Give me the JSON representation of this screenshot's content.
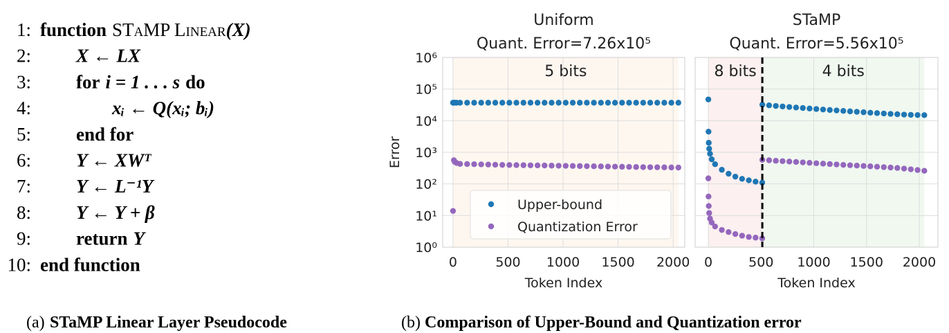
{
  "algorithm": {
    "lines": [
      {
        "number": "1:",
        "keyword": "function",
        "name": "STaMP Linear",
        "code": "(X)"
      },
      {
        "number": "2:",
        "code": "X ← LX"
      },
      {
        "number": "3:",
        "keyword": "for",
        "code": "i = 1 . . . s",
        "end": "do"
      },
      {
        "number": "4:",
        "code": "xᵢ ← Q(xᵢ; bᵢ)"
      },
      {
        "number": "5:",
        "keyword": "end for"
      },
      {
        "number": "6:",
        "code": "Y ← XWᵀ"
      },
      {
        "number": "7:",
        "code": "Y ← L⁻¹Y"
      },
      {
        "number": "8:",
        "code": "Y ← Y + β"
      },
      {
        "number": "9:",
        "keyword": "return",
        "code": "Y"
      },
      {
        "number": "10:",
        "keyword": "end function"
      }
    ]
  },
  "captions": [
    {
      "label": "(a)",
      "text": "STaMP Linear Layer Pseudocode"
    },
    {
      "label": "(b)",
      "text": "Comparison of Upper-Bound and Quantization error"
    }
  ],
  "chart_data": [
    {
      "type": "scatter",
      "title": "Uniform",
      "subtitle": "Quant. Error=7.26x10⁵",
      "xlabel": "Token Index",
      "ylabel": "Error",
      "ylog": true,
      "grid": true,
      "legend": "lower center",
      "xlim": [
        -94,
        2106
      ],
      "xticks": [
        0,
        500,
        1000,
        1500,
        2000
      ],
      "ylim": [
        1,
        1000000
      ],
      "yticks": [
        {
          "value": 1,
          "label": "10⁰"
        },
        {
          "value": 10,
          "label": "10¹"
        },
        {
          "value": 100,
          "label": "10²"
        },
        {
          "value": 1000,
          "label": "10³"
        },
        {
          "value": 10000,
          "label": "10⁴"
        },
        {
          "value": 100000,
          "label": "10⁵"
        },
        {
          "value": 1000000,
          "label": "10⁶"
        }
      ],
      "regions": [
        {
          "from": 0,
          "to": 2048,
          "label": "5 bits",
          "color": "#f28e2b"
        }
      ],
      "x": [
        0,
        8,
        16,
        32,
        64,
        128,
        192,
        256,
        320,
        384,
        448,
        512,
        576,
        640,
        704,
        768,
        832,
        896,
        960,
        1024,
        1088,
        1152,
        1216,
        1280,
        1344,
        1408,
        1472,
        1536,
        1600,
        1664,
        1728,
        1792,
        1856,
        1920,
        1984,
        2048
      ],
      "series": [
        {
          "name": "Upper-bound",
          "color": "#1f77b4",
          "values": [
            37000,
            37000,
            37000,
            37000,
            37000,
            37000,
            37000,
            37000,
            37000,
            37000,
            37000,
            37000,
            37000,
            37000,
            37000,
            37000,
            37000,
            37000,
            37000,
            37000,
            37000,
            37000,
            37000,
            37000,
            37000,
            37000,
            37000,
            37000,
            37000,
            37000,
            37000,
            37000,
            37000,
            37000,
            37000,
            37000
          ]
        },
        {
          "name": "Quantization Error",
          "color": "#9467bd",
          "values": [
            14,
            560,
            500,
            460,
            430,
            425,
            420,
            415,
            410,
            405,
            400,
            397,
            394,
            391,
            388,
            385,
            382,
            379,
            376,
            373,
            370,
            367,
            364,
            361,
            358,
            355,
            352,
            349,
            346,
            343,
            340,
            338,
            336,
            334,
            332,
            330
          ]
        }
      ]
    },
    {
      "type": "scatter",
      "title": "STaMP",
      "subtitle": "Quant. Error=5.56x10⁵",
      "xlabel": "Token Index",
      "ylog": true,
      "grid": true,
      "xlim": [
        -125,
        2177
      ],
      "xticks": [
        0,
        500,
        1000,
        1500,
        2000
      ],
      "ylim": [
        1,
        1000000
      ],
      "yticks": [
        1,
        10,
        100,
        1000,
        10000,
        100000,
        1000000
      ],
      "regions": [
        {
          "from": 0,
          "to": 512,
          "label": "8 bits",
          "color": "#d62728"
        },
        {
          "from": 512,
          "to": 2048,
          "label": "4 bits",
          "color": "#2ca02c"
        }
      ],
      "divider": 512,
      "x": [
        0,
        2,
        4,
        8,
        16,
        32,
        64,
        128,
        192,
        256,
        320,
        384,
        448,
        511,
        512,
        576,
        640,
        704,
        768,
        832,
        896,
        960,
        1024,
        1088,
        1152,
        1216,
        1280,
        1344,
        1408,
        1472,
        1536,
        1600,
        1664,
        1728,
        1792,
        1856,
        1920,
        1984,
        2048
      ],
      "series": [
        {
          "color": "#1f77b4",
          "values": [
            47000,
            4500,
            2000,
            1300,
            900,
            600,
            420,
            280,
            210,
            170,
            145,
            130,
            118,
            110,
            32000,
            30500,
            29300,
            28200,
            27100,
            26100,
            25200,
            24300,
            23400,
            22600,
            21800,
            21100,
            20400,
            19700,
            19100,
            18500,
            17900,
            17400,
            16900,
            16400,
            16000,
            15600,
            15300,
            15100,
            15000
          ]
        },
        {
          "color": "#9467bd",
          "values": [
            150,
            40,
            20,
            12,
            8,
            6,
            4.5,
            3.5,
            3,
            2.6,
            2.3,
            2.1,
            2,
            1.9,
            580,
            560,
            540,
            525,
            510,
            495,
            480,
            465,
            450,
            438,
            425,
            413,
            400,
            390,
            380,
            370,
            360,
            350,
            340,
            330,
            320,
            305,
            290,
            275,
            260
          ]
        }
      ]
    }
  ]
}
